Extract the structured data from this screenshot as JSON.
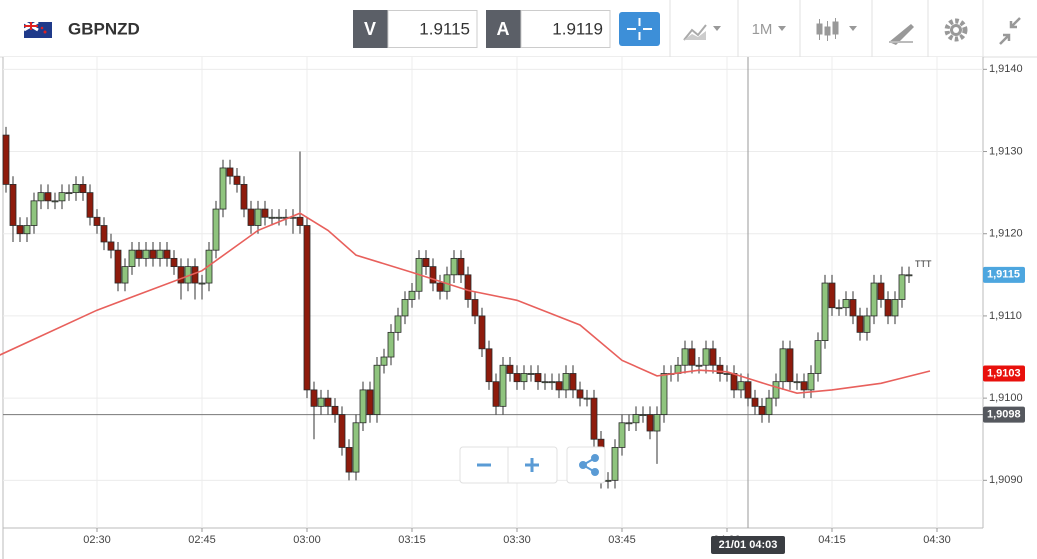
{
  "header": {
    "symbol": "GBPNZD",
    "bid_label": "V",
    "bid": 1.9115,
    "ask_label": "A",
    "ask": 1.9119,
    "timeframe": "1M"
  },
  "chart_data": {
    "type": "candlestick",
    "up_color": "#8fc47e",
    "down_color": "#8e1b0c",
    "grid": true,
    "xlim": [
      "02:17",
      "04:36"
    ],
    "xticks": [
      "02:30",
      "02:45",
      "03:00",
      "03:15",
      "03:30",
      "03:45",
      "04:00",
      "04:15",
      "04:30"
    ],
    "ylim": [
      1.90842,
      1.91415
    ],
    "yticks": [
      {
        "value": 1.914,
        "label": "1,9140"
      },
      {
        "value": 1.913,
        "label": "1,9130"
      },
      {
        "value": 1.912,
        "label": "1,9120"
      },
      {
        "value": 1.911,
        "label": "1,9110"
      },
      {
        "value": 1.91,
        "label": "1,9100"
      },
      {
        "value": 1.909,
        "label": "1,9090"
      }
    ],
    "x": [
      "02:17",
      "02:18",
      "02:19",
      "02:20",
      "02:21",
      "02:22",
      "02:23",
      "02:24",
      "02:25",
      "02:26",
      "02:27",
      "02:28",
      "02:29",
      "02:30",
      "02:31",
      "02:32",
      "02:33",
      "02:34",
      "02:35",
      "02:36",
      "02:37",
      "02:38",
      "02:39",
      "02:40",
      "02:41",
      "02:42",
      "02:43",
      "02:44",
      "02:45",
      "02:46",
      "02:47",
      "02:48",
      "02:49",
      "02:50",
      "02:51",
      "02:52",
      "02:53",
      "02:54",
      "02:55",
      "02:56",
      "02:57",
      "02:58",
      "02:59",
      "03:00",
      "03:01",
      "03:02",
      "03:03",
      "03:04",
      "03:05",
      "03:06",
      "03:07",
      "03:08",
      "03:09",
      "03:10",
      "03:11",
      "03:12",
      "03:13",
      "03:14",
      "03:15",
      "03:16",
      "03:17",
      "03:18",
      "03:19",
      "03:20",
      "03:21",
      "03:22",
      "03:23",
      "03:24",
      "03:25",
      "03:26",
      "03:27",
      "03:28",
      "03:29",
      "03:30",
      "03:31",
      "03:32",
      "03:33",
      "03:34",
      "03:35",
      "03:36",
      "03:37",
      "03:38",
      "03:39",
      "03:40",
      "03:41",
      "03:42",
      "03:43",
      "03:44",
      "03:45",
      "03:46",
      "03:47",
      "03:48",
      "03:49",
      "03:50",
      "03:51",
      "03:52",
      "03:53",
      "03:54",
      "03:55",
      "03:56",
      "03:57",
      "03:58",
      "03:59",
      "04:00",
      "04:01",
      "04:02",
      "04:03",
      "04:04",
      "04:05",
      "04:06",
      "04:07",
      "04:08",
      "04:09",
      "04:10",
      "04:11",
      "04:12",
      "04:13",
      "04:14",
      "04:15",
      "04:16",
      "04:17",
      "04:18",
      "04:19",
      "04:20",
      "04:21",
      "04:22",
      "04:23",
      "04:24",
      "04:25",
      "04:26"
    ],
    "ohlc": [
      [
        1.9132,
        1.9133,
        1.9125,
        1.9126
      ],
      [
        1.9126,
        1.9127,
        1.9119,
        1.9121
      ],
      [
        1.9121,
        1.9122,
        1.9119,
        1.912
      ],
      [
        1.912,
        1.9122,
        1.9119,
        1.9121
      ],
      [
        1.9121,
        1.9125,
        1.912,
        1.9124
      ],
      [
        1.9124,
        1.9126,
        1.9123,
        1.9125
      ],
      [
        1.9125,
        1.9126,
        1.9123,
        1.9124
      ],
      [
        1.9124,
        1.9125,
        1.9123,
        1.9124
      ],
      [
        1.9124,
        1.9126,
        1.9123,
        1.9125
      ],
      [
        1.9125,
        1.9126,
        1.9124,
        1.9125
      ],
      [
        1.9125,
        1.9127,
        1.9124,
        1.9126
      ],
      [
        1.9126,
        1.9127,
        1.9124,
        1.9125
      ],
      [
        1.9125,
        1.9126,
        1.9121,
        1.9122
      ],
      [
        1.9122,
        1.9123,
        1.912,
        1.9121
      ],
      [
        1.9121,
        1.9122,
        1.9118,
        1.9119
      ],
      [
        1.9119,
        1.912,
        1.9117,
        1.9118
      ],
      [
        1.9118,
        1.9119,
        1.9113,
        1.9114
      ],
      [
        1.9114,
        1.9117,
        1.9113,
        1.9116
      ],
      [
        1.9116,
        1.9119,
        1.9115,
        1.9118
      ],
      [
        1.9118,
        1.9119,
        1.9116,
        1.9117
      ],
      [
        1.9117,
        1.9119,
        1.9116,
        1.9118
      ],
      [
        1.9118,
        1.9119,
        1.9116,
        1.9117
      ],
      [
        1.9117,
        1.9119,
        1.9116,
        1.9118
      ],
      [
        1.9118,
        1.9119,
        1.9116,
        1.9117
      ],
      [
        1.9117,
        1.9118,
        1.9115,
        1.9116
      ],
      [
        1.9116,
        1.9117,
        1.9112,
        1.9114
      ],
      [
        1.9114,
        1.9117,
        1.9113,
        1.9116
      ],
      [
        1.9116,
        1.9117,
        1.9112,
        1.9114
      ],
      [
        1.9114,
        1.9115,
        1.9112,
        1.9114
      ],
      [
        1.9114,
        1.9119,
        1.9113,
        1.9118
      ],
      [
        1.9118,
        1.9124,
        1.9117,
        1.9123
      ],
      [
        1.9123,
        1.9129,
        1.9122,
        1.9128
      ],
      [
        1.9128,
        1.9129,
        1.9126,
        1.9127
      ],
      [
        1.9127,
        1.9128,
        1.9125,
        1.9126
      ],
      [
        1.9126,
        1.9127,
        1.9122,
        1.9123
      ],
      [
        1.9123,
        1.9124,
        1.912,
        1.9121
      ],
      [
        1.9121,
        1.9124,
        1.912,
        1.9123
      ],
      [
        1.9123,
        1.9124,
        1.9121,
        1.9122
      ],
      [
        1.9122,
        1.9123,
        1.9121,
        1.9122
      ],
      [
        1.9122,
        1.9123,
        1.9121,
        1.9122
      ],
      [
        1.9122,
        1.9123,
        1.9121,
        1.9122
      ],
      [
        1.9122,
        1.9123,
        1.912,
        1.9122
      ],
      [
        1.9122,
        1.913,
        1.912,
        1.9121
      ],
      [
        1.9121,
        1.9122,
        1.91,
        1.9101
      ],
      [
        1.9101,
        1.9102,
        1.9095,
        1.9099
      ],
      [
        1.9099,
        1.9101,
        1.9098,
        1.91
      ],
      [
        1.91,
        1.9101,
        1.9098,
        1.9099
      ],
      [
        1.9099,
        1.91,
        1.9097,
        1.9098
      ],
      [
        1.9098,
        1.9099,
        1.9093,
        1.9094
      ],
      [
        1.9094,
        1.9095,
        1.909,
        1.9091
      ],
      [
        1.9091,
        1.9098,
        1.909,
        1.9097
      ],
      [
        1.9097,
        1.9102,
        1.9096,
        1.9101
      ],
      [
        1.9101,
        1.9102,
        1.9097,
        1.9098
      ],
      [
        1.9098,
        1.9105,
        1.9097,
        1.9104
      ],
      [
        1.9104,
        1.9106,
        1.9103,
        1.9105
      ],
      [
        1.9105,
        1.9109,
        1.9104,
        1.9108
      ],
      [
        1.9108,
        1.9111,
        1.9107,
        1.911
      ],
      [
        1.911,
        1.9113,
        1.9109,
        1.9112
      ],
      [
        1.9112,
        1.9114,
        1.9111,
        1.9113
      ],
      [
        1.9113,
        1.9118,
        1.9112,
        1.9117
      ],
      [
        1.9117,
        1.9118,
        1.9115,
        1.9116
      ],
      [
        1.9116,
        1.9117,
        1.9113,
        1.9114
      ],
      [
        1.9114,
        1.9115,
        1.9112,
        1.9113
      ],
      [
        1.9113,
        1.9116,
        1.9112,
        1.9115
      ],
      [
        1.9115,
        1.9118,
        1.9114,
        1.9117
      ],
      [
        1.9117,
        1.9118,
        1.9114,
        1.9115
      ],
      [
        1.9115,
        1.9116,
        1.9111,
        1.9112
      ],
      [
        1.9112,
        1.9113,
        1.9109,
        1.911
      ],
      [
        1.911,
        1.9111,
        1.9105,
        1.9106
      ],
      [
        1.9106,
        1.9107,
        1.9101,
        1.9102
      ],
      [
        1.9102,
        1.9103,
        1.9098,
        1.9099
      ],
      [
        1.9099,
        1.9105,
        1.9098,
        1.9104
      ],
      [
        1.9104,
        1.9105,
        1.9102,
        1.9103
      ],
      [
        1.9103,
        1.9104,
        1.9101,
        1.9102
      ],
      [
        1.9102,
        1.9104,
        1.9101,
        1.9103
      ],
      [
        1.9103,
        1.9104,
        1.9102,
        1.9103
      ],
      [
        1.9103,
        1.9104,
        1.9101,
        1.9102
      ],
      [
        1.9102,
        1.9103,
        1.9101,
        1.9102
      ],
      [
        1.9102,
        1.9103,
        1.9101,
        1.9102
      ],
      [
        1.9102,
        1.9103,
        1.91,
        1.9101
      ],
      [
        1.9101,
        1.9104,
        1.91,
        1.9103
      ],
      [
        1.9103,
        1.9104,
        1.91,
        1.9101
      ],
      [
        1.9101,
        1.9102,
        1.9099,
        1.91
      ],
      [
        1.91,
        1.9101,
        1.9099,
        1.91
      ],
      [
        1.91,
        1.9101,
        1.9094,
        1.9095
      ],
      [
        1.9095,
        1.9096,
        1.9089,
        1.909
      ],
      [
        1.909,
        1.9091,
        1.9089,
        1.909
      ],
      [
        1.909,
        1.9095,
        1.9089,
        1.9094
      ],
      [
        1.9094,
        1.9098,
        1.9093,
        1.9097
      ],
      [
        1.9097,
        1.9098,
        1.9096,
        1.9097
      ],
      [
        1.9097,
        1.9099,
        1.9096,
        1.9098
      ],
      [
        1.9098,
        1.9099,
        1.9097,
        1.9098
      ],
      [
        1.9098,
        1.9099,
        1.9095,
        1.9096
      ],
      [
        1.9096,
        1.9099,
        1.9092,
        1.9098
      ],
      [
        1.9098,
        1.9104,
        1.9097,
        1.9103
      ],
      [
        1.9103,
        1.9104,
        1.9102,
        1.9103
      ],
      [
        1.9103,
        1.9105,
        1.9102,
        1.9104
      ],
      [
        1.9104,
        1.9107,
        1.9103,
        1.9106
      ],
      [
        1.9106,
        1.9107,
        1.9103,
        1.9104
      ],
      [
        1.9104,
        1.9105,
        1.9103,
        1.9104
      ],
      [
        1.9104,
        1.9107,
        1.9103,
        1.9106
      ],
      [
        1.9106,
        1.9107,
        1.9103,
        1.9104
      ],
      [
        1.9104,
        1.9105,
        1.9102,
        1.9103
      ],
      [
        1.9103,
        1.9104,
        1.9102,
        1.9103
      ],
      [
        1.9103,
        1.9104,
        1.91,
        1.9101
      ],
      [
        1.9101,
        1.9103,
        1.91,
        1.9102
      ],
      [
        1.9102,
        1.9103,
        1.9099,
        1.91
      ],
      [
        1.91,
        1.9101,
        1.9098,
        1.9099
      ],
      [
        1.9099,
        1.91,
        1.9097,
        1.9098
      ],
      [
        1.9098,
        1.9101,
        1.9097,
        1.91
      ],
      [
        1.91,
        1.9103,
        1.9099,
        1.9102
      ],
      [
        1.9102,
        1.9107,
        1.9101,
        1.9106
      ],
      [
        1.9106,
        1.9107,
        1.9101,
        1.9102
      ],
      [
        1.9102,
        1.9103,
        1.9101,
        1.9102
      ],
      [
        1.9102,
        1.9103,
        1.91,
        1.9101
      ],
      [
        1.9101,
        1.9104,
        1.91,
        1.9103
      ],
      [
        1.9103,
        1.9108,
        1.9102,
        1.9107
      ],
      [
        1.9107,
        1.9115,
        1.9106,
        1.9114
      ],
      [
        1.9114,
        1.9115,
        1.911,
        1.9111
      ],
      [
        1.9111,
        1.9112,
        1.911,
        1.9111
      ],
      [
        1.9111,
        1.9113,
        1.911,
        1.9112
      ],
      [
        1.9112,
        1.9113,
        1.9109,
        1.911
      ],
      [
        1.911,
        1.9111,
        1.9107,
        1.9108
      ],
      [
        1.9108,
        1.9111,
        1.9107,
        1.911
      ],
      [
        1.911,
        1.9115,
        1.9109,
        1.9114
      ],
      [
        1.9114,
        1.9115,
        1.9111,
        1.9112
      ],
      [
        1.9112,
        1.9113,
        1.9109,
        1.911
      ],
      [
        1.911,
        1.9113,
        1.9109,
        1.9112
      ],
      [
        1.9112,
        1.9116,
        1.9111,
        1.9115
      ],
      [
        1.9115,
        1.9116,
        1.9114,
        1.9115
      ]
    ],
    "moving_average": {
      "color": "#e8605c",
      "x": [
        "02:16",
        "02:30",
        "02:45",
        "02:53",
        "02:59",
        "03:03",
        "03:07",
        "03:15",
        "03:23",
        "03:30",
        "03:39",
        "03:45",
        "03:50",
        "03:56",
        "04:00",
        "04:06",
        "04:10",
        "04:15",
        "04:22",
        "04:29"
      ],
      "values": [
        1.91052,
        1.91107,
        1.91155,
        1.91204,
        1.91225,
        1.91204,
        1.91174,
        1.91153,
        1.91131,
        1.91119,
        1.91089,
        1.91046,
        1.91027,
        1.91034,
        1.91032,
        1.91016,
        1.91006,
        1.9101,
        1.91018,
        1.91033
      ]
    },
    "price_labels": [
      {
        "value": 1.9115,
        "label": "1,9115",
        "color": "#4da6df"
      },
      {
        "value": 1.9103,
        "label": "1,9103",
        "color": "#e8100c"
      },
      {
        "value": 1.9098,
        "label": "1,9098",
        "color": "#55585e"
      }
    ],
    "crosshair": {
      "x": "04:03",
      "x_label": "21/01 04:03",
      "y": 1.9098
    },
    "annotation": "TTT"
  }
}
